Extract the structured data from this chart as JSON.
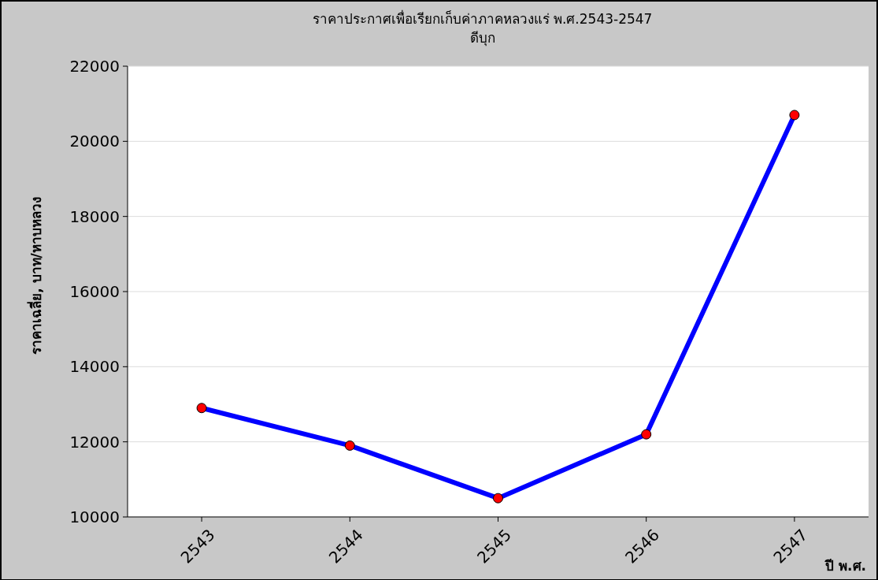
{
  "chart_data": {
    "type": "line",
    "title": "ราคาประกาศเพื่อเรียกเก็บค่าภาคหลวงแร่ พ.ศ.2543-2547",
    "subtitle": "ดีบุก",
    "xlabel": "ปี พ.ศ.",
    "ylabel": "ราคาเฉลี่ย, บาท/หาบหลวง",
    "categories": [
      "2543",
      "2544",
      "2545",
      "2546",
      "2547"
    ],
    "series": [
      {
        "color": "#0000ff",
        "values": [
          12900,
          11900,
          10500,
          12200,
          20700
        ]
      }
    ],
    "ylim": [
      10000,
      22000
    ],
    "yticks": [
      10000,
      12000,
      14000,
      16000,
      18000,
      20000,
      22000
    ],
    "grid": "y",
    "marker": "circle"
  }
}
